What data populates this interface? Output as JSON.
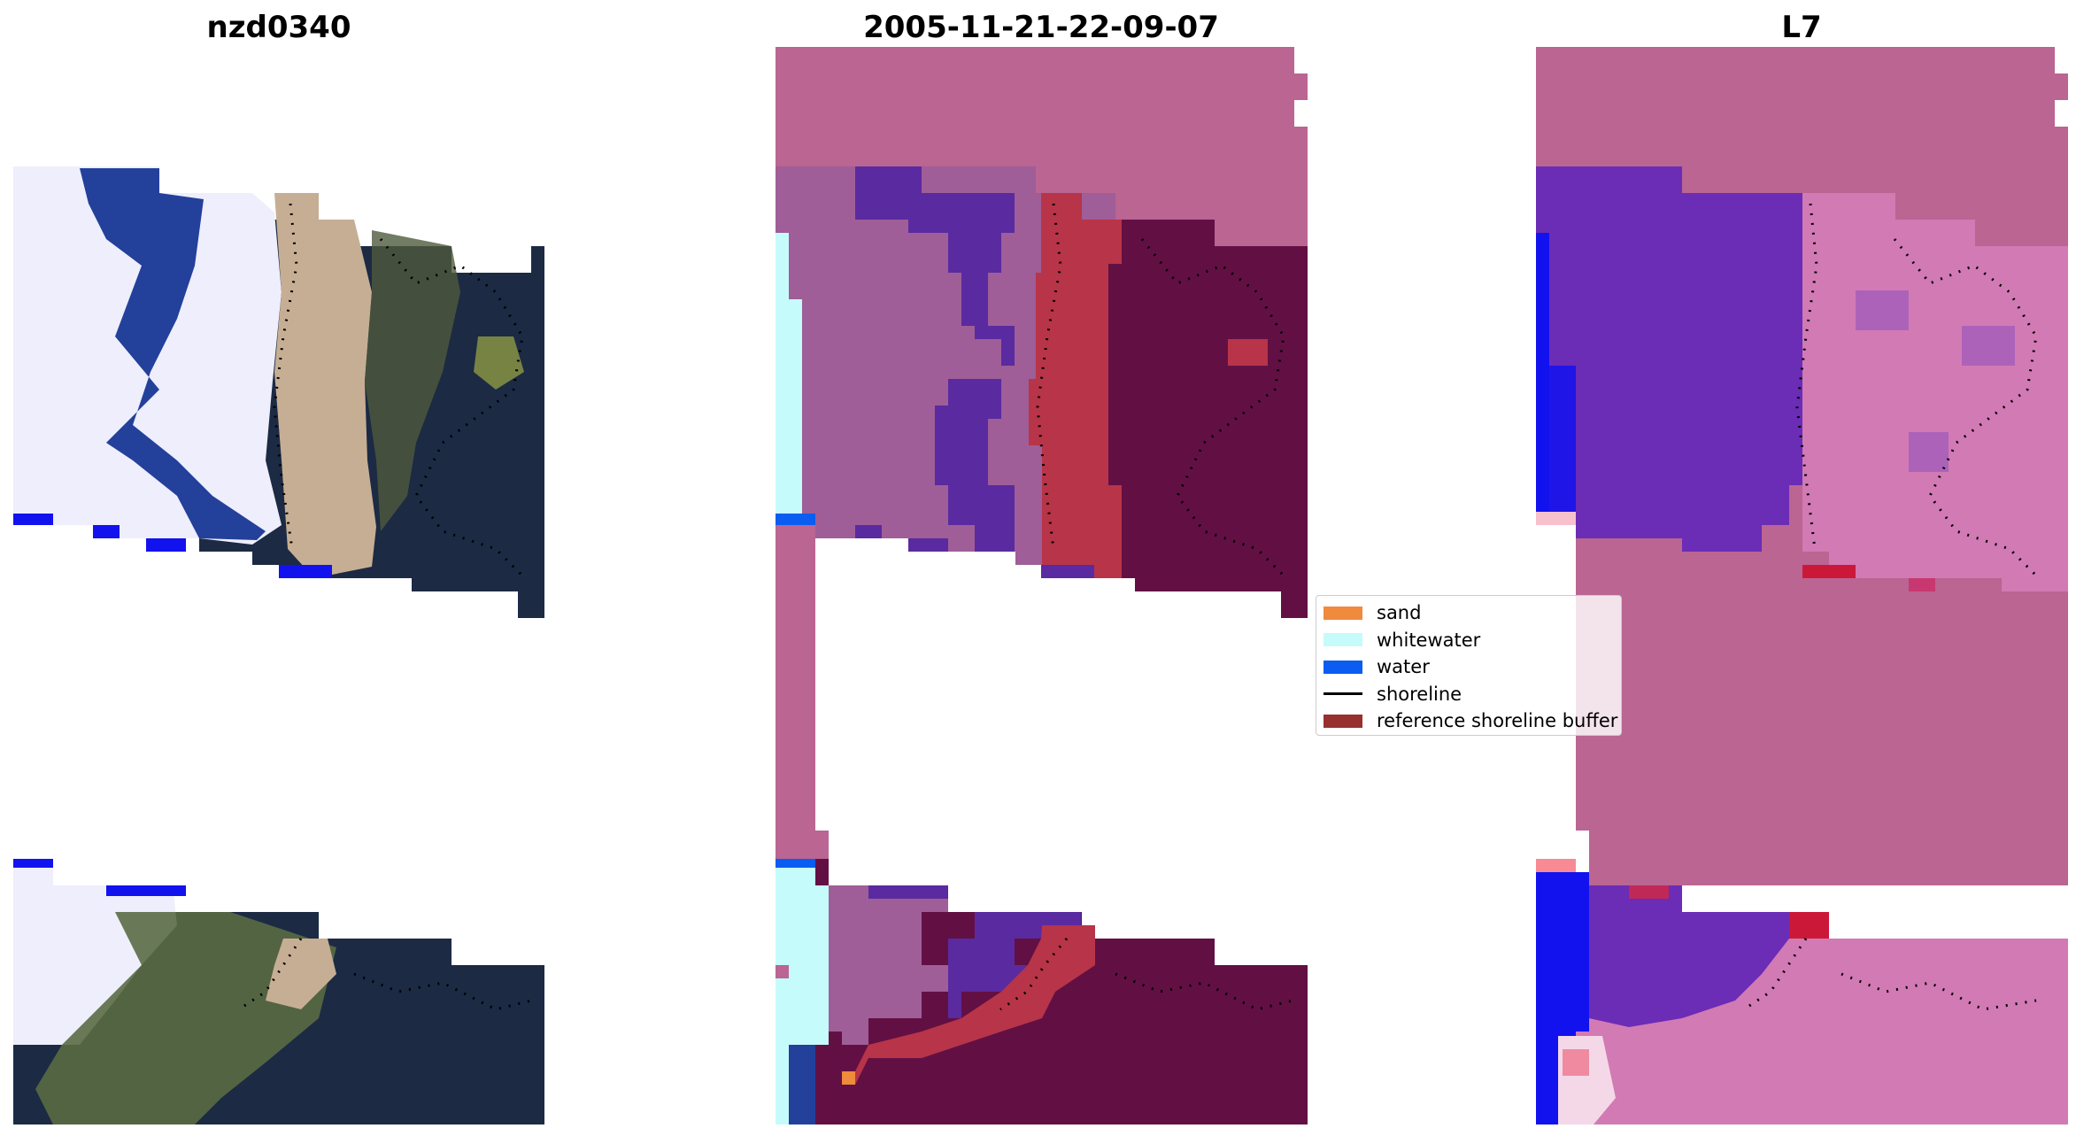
{
  "panels": [
    {
      "title": "nzd0340"
    },
    {
      "title": "2005-11-21-22-09-07"
    },
    {
      "title": "L7"
    }
  ],
  "legend": {
    "items": [
      {
        "label": "sand",
        "color": "#f08a3c",
        "kind": "patch"
      },
      {
        "label": "whitewater",
        "color": "#c6fbfb",
        "kind": "patch"
      },
      {
        "label": "water",
        "color": "#0a5df0",
        "kind": "patch"
      },
      {
        "label": "shoreline",
        "color": "#000000",
        "kind": "line"
      },
      {
        "label": "reference shoreline buffer",
        "color": "#983030",
        "kind": "patch"
      }
    ]
  },
  "colors": {
    "buffer_pink": "#ba6592",
    "dark_wine": "#621044",
    "sand_red": "#b83448",
    "purple_water": "#5a2aa0",
    "cloud_white": "#eeeefc",
    "sea_blue": "#23409a",
    "land_dark": "#1c2a44",
    "beach_tan": "#c6ae94",
    "bright_blue": "#1212ef",
    "violet_index": "#6b2cb6",
    "pink_index": "#d27ab4"
  }
}
